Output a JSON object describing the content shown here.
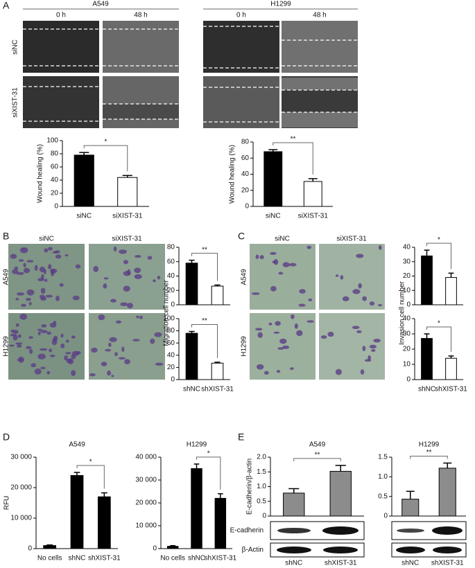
{
  "panels": [
    "A",
    "B",
    "C",
    "D",
    "E"
  ],
  "wound": {
    "groups": [
      {
        "name": "A549",
        "times": [
          "0 h",
          "48 h"
        ]
      },
      {
        "name": "H1299",
        "times": [
          "0 h",
          "48 h"
        ]
      }
    ],
    "rows": [
      "siNC",
      "siXIST-31"
    ]
  },
  "transwell": [
    {
      "columns": [
        "siNC",
        "siXIST-31"
      ],
      "rows": [
        "A549",
        "H1299"
      ]
    },
    {
      "columns": [
        "siNC",
        "siXIST-31"
      ],
      "rows": [
        "A549",
        "H1299"
      ]
    }
  ],
  "blots": {
    "labels": [
      "E-cadherin",
      "β-Actin"
    ]
  },
  "chart_data": [
    {
      "type": "bar",
      "ylabel": "Wound healing (%)",
      "categories": [
        "siNC",
        "siXIST-31"
      ],
      "values": [
        78,
        44
      ],
      "errors": [
        4,
        3
      ],
      "colors": [
        "#000000",
        "#ffffff"
      ],
      "ylim": [
        0,
        100
      ],
      "yticks": [
        0,
        20,
        40,
        60,
        80,
        100
      ],
      "annotation": "*"
    },
    {
      "type": "bar",
      "ylabel": "Wound healing (%)",
      "categories": [
        "siNC",
        "siXIST-31"
      ],
      "values": [
        68,
        31
      ],
      "errors": [
        2.5,
        3.5
      ],
      "colors": [
        "#000000",
        "#ffffff"
      ],
      "ylim": [
        0,
        80
      ],
      "yticks": [
        0,
        20,
        40,
        60,
        80
      ],
      "annotation": "**"
    },
    {
      "type": "bar",
      "values": [
        58,
        26
      ],
      "errors": [
        4,
        1.5
      ],
      "colors": [
        "#000000",
        "#ffffff"
      ],
      "ylim": [
        0,
        80
      ],
      "yticks": [
        0,
        20,
        40,
        60,
        80
      ],
      "annotation": "**"
    },
    {
      "type": "bar",
      "ylabel": "Migration cell number",
      "categories": [
        "shNC",
        "shXIST-31"
      ],
      "values": [
        76,
        27
      ],
      "errors": [
        3,
        1.5
      ],
      "colors": [
        "#000000",
        "#ffffff"
      ],
      "ylim": [
        0,
        100
      ],
      "yticks": [
        0,
        20,
        40,
        60,
        80,
        100
      ],
      "annotation": "**"
    },
    {
      "type": "bar",
      "values": [
        34,
        19
      ],
      "errors": [
        4,
        3
      ],
      "colors": [
        "#000000",
        "#ffffff"
      ],
      "ylim": [
        0,
        40
      ],
      "yticks": [
        0,
        10,
        20,
        30,
        40
      ],
      "annotation": "*"
    },
    {
      "type": "bar",
      "ylabel": "Invasion cell number",
      "categories": [
        "shNC",
        "shXIST-31"
      ],
      "values": [
        27,
        14
      ],
      "errors": [
        3,
        1.5
      ],
      "colors": [
        "#000000",
        "#ffffff"
      ],
      "ylim": [
        0,
        40
      ],
      "yticks": [
        0,
        10,
        20,
        30,
        40
      ],
      "annotation": "*"
    },
    {
      "type": "bar",
      "title": "A549",
      "ylabel": "RFU",
      "categories": [
        "No cells",
        "shNC",
        "shXIST-31"
      ],
      "values": [
        1000,
        24000,
        17000
      ],
      "errors": [
        200,
        1000,
        1300
      ],
      "colors": [
        "#000000",
        "#000000",
        "#000000"
      ],
      "ylim": [
        0,
        30000
      ],
      "yticks": [
        0,
        {
          "value": 10000,
          "label": "10 000"
        },
        {
          "value": 20000,
          "label": "20 000"
        },
        {
          "value": 30000,
          "label": "30 000"
        }
      ],
      "annotation": "*"
    },
    {
      "type": "bar",
      "title": "H1299",
      "categories": [
        "No cells",
        "shNC",
        "shXIST-31"
      ],
      "values": [
        1000,
        35000,
        22000
      ],
      "errors": [
        300,
        2000,
        2000
      ],
      "colors": [
        "#000000",
        "#000000",
        "#000000"
      ],
      "ylim": [
        0,
        40000
      ],
      "yticks": [
        0,
        {
          "value": 10000,
          "label": "10 000"
        },
        {
          "value": 20000,
          "label": "20 000"
        },
        {
          "value": 30000,
          "label": "30 000"
        },
        {
          "value": 40000,
          "label": "40 000"
        }
      ],
      "annotation": "*"
    },
    {
      "type": "bar",
      "title": "A549",
      "ylabel": "E-cadherin/β-actin",
      "categories": [
        "shNC",
        "shXIST-31"
      ],
      "values": [
        0.78,
        1.52
      ],
      "errors": [
        0.15,
        0.2
      ],
      "colors": [
        "#8c8c8c",
        "#8c8c8c"
      ],
      "ylim": [
        0,
        2
      ],
      "yticks": [
        0,
        0.5,
        {
          "value": 1,
          "label": "1.0"
        },
        1.5,
        {
          "value": 2,
          "label": "2.0"
        }
      ],
      "annotation": "**"
    },
    {
      "type": "bar",
      "title": "H1299",
      "categories": [
        "shNC",
        "shXIST-31"
      ],
      "values": [
        0.43,
        1.22
      ],
      "errors": [
        0.2,
        0.13
      ],
      "colors": [
        "#8c8c8c",
        "#8c8c8c"
      ],
      "ylim": [
        0,
        1.5
      ],
      "yticks": [
        0,
        0.5,
        {
          "value": 1,
          "label": "1.0"
        },
        1.5
      ],
      "annotation": "**"
    }
  ]
}
